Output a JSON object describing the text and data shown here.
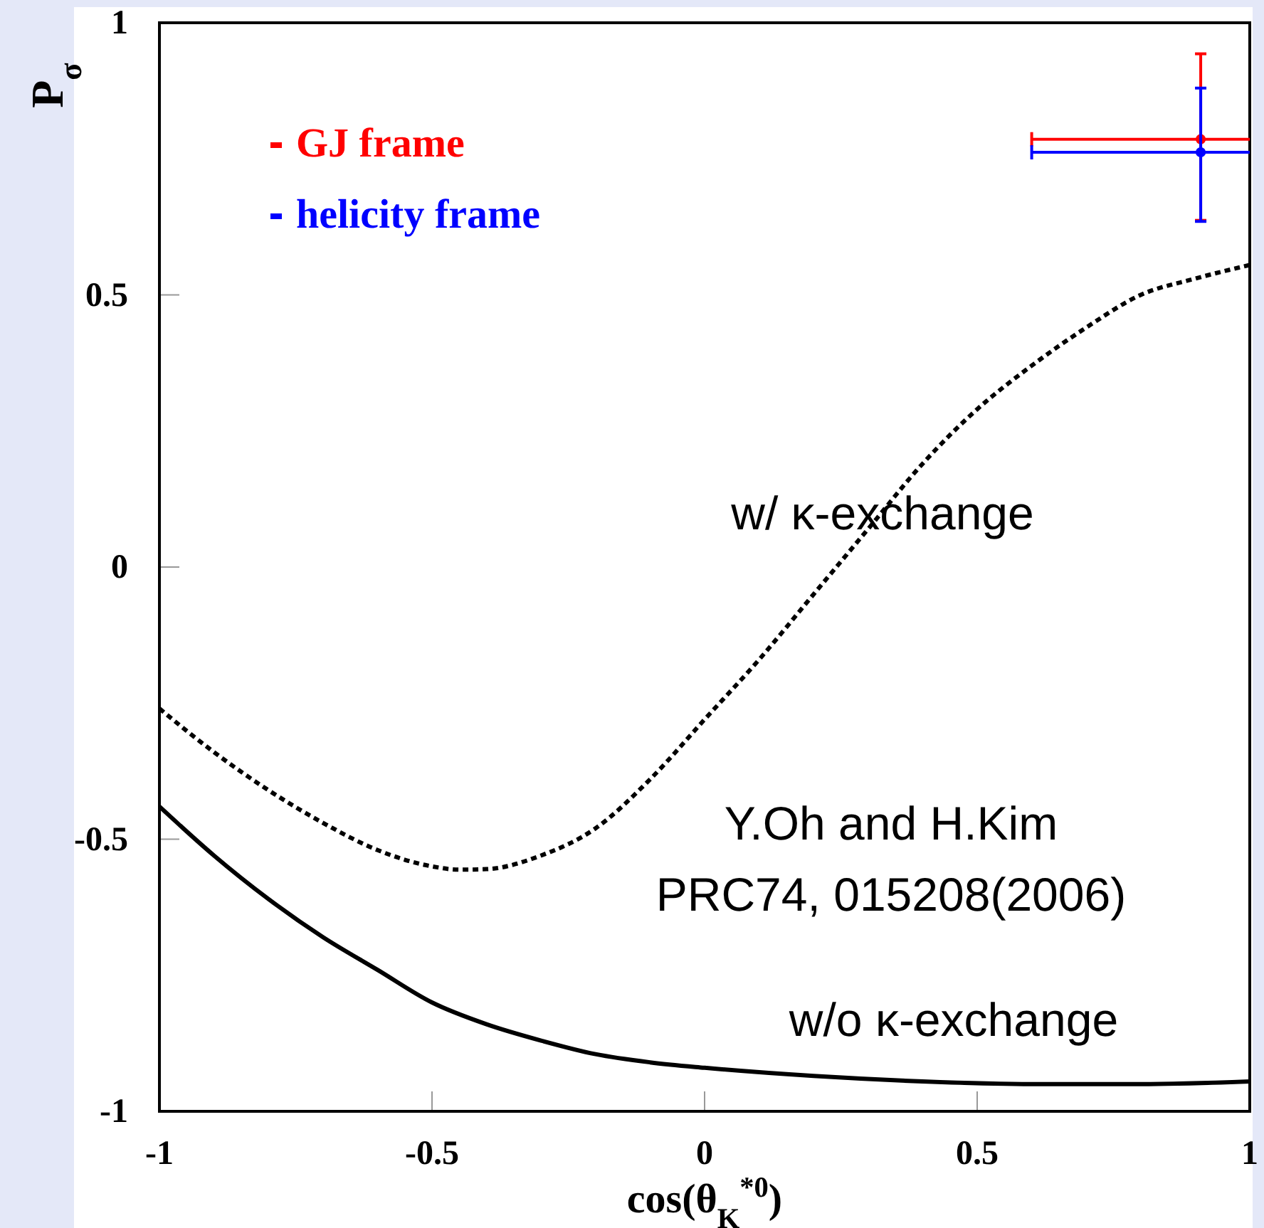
{
  "chart_data": {
    "type": "line",
    "xlabel": "cos(θ$_{K}$$^{*0}$)",
    "ylabel": "P$_{σ}$",
    "xlim": [
      -1,
      1
    ],
    "ylim": [
      -1,
      1
    ],
    "xticks": [
      -1,
      -0.5,
      0,
      0.5,
      1
    ],
    "yticks": [
      -1,
      -0.5,
      0,
      0.5,
      1
    ],
    "grid": false,
    "legend": "top left",
    "series": [
      {
        "color": "#000000",
        "line_style": "dotted",
        "x": [
          -1,
          -0.9,
          -0.8,
          -0.7,
          -0.6,
          -0.5,
          -0.45,
          -0.4,
          -0.3,
          -0.2,
          -0.1,
          0,
          0.1,
          0.2,
          0.3,
          0.4,
          0.5,
          0.6,
          0.7,
          0.8,
          0.9,
          1
        ],
        "values": [
          -0.26,
          -0.34,
          -0.41,
          -0.47,
          -0.52,
          -0.55,
          -0.556,
          -0.555,
          -0.53,
          -0.48,
          -0.39,
          -0.28,
          -0.17,
          -0.05,
          0.07,
          0.19,
          0.29,
          0.37,
          0.44,
          0.5,
          0.53,
          0.555
        ]
      },
      {
        "color": "#000000",
        "line_style": "solid",
        "x": [
          -1,
          -0.9,
          -0.8,
          -0.7,
          -0.6,
          -0.5,
          -0.4,
          -0.3,
          -0.2,
          -0.1,
          0,
          0.2,
          0.4,
          0.6,
          0.8,
          1
        ],
        "values": [
          -0.44,
          -0.53,
          -0.61,
          -0.68,
          -0.74,
          -0.8,
          -0.84,
          -0.87,
          -0.895,
          -0.91,
          -0.92,
          -0.935,
          -0.945,
          -0.95,
          -0.95,
          -0.945
        ]
      },
      {
        "type": "scatter",
        "name": "GJ frame",
        "color": "#ff0000",
        "marker": "circle",
        "x": [
          0.91
        ],
        "values": [
          0.786
        ],
        "errors": [
          [
            0.637,
            0.943
          ]
        ],
        "xerrors": [
          [
            0.6,
            1.0
          ]
        ]
      },
      {
        "type": "scatter",
        "name": "helicity frame",
        "color": "#0000ff",
        "marker": "circle",
        "x": [
          0.91
        ],
        "values": [
          0.762
        ],
        "errors": [
          [
            0.635,
            0.88
          ]
        ],
        "xerrors": [
          [
            0.6,
            1.0
          ]
        ]
      }
    ],
    "annotations": [
      "w/ κ-exchange",
      "Y.Oh and H.Kim",
      "PRC74, 015208(2006)",
      "w/o κ-exchange"
    ]
  }
}
